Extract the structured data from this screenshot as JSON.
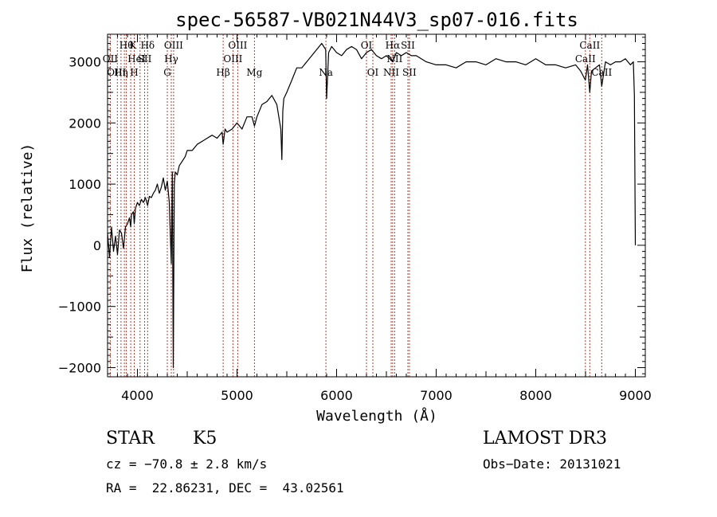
{
  "chart_data": {
    "type": "line",
    "title": "spec-56587-VB021N44V3_sp07-016.fits",
    "xlabel": "Wavelength (Å)",
    "ylabel": "Flux (relative)",
    "xlim": [
      3700,
      9100
    ],
    "ylim": [
      -2150,
      3450
    ],
    "xticks": [
      {
        "value": 4000,
        "label": "4000"
      },
      {
        "value": 5000,
        "label": "5000"
      },
      {
        "value": 6000,
        "label": "6000"
      },
      {
        "value": 7000,
        "label": "7000"
      },
      {
        "value": 8000,
        "label": "8000"
      },
      {
        "value": 9000,
        "label": "9000"
      }
    ],
    "yticks": [
      {
        "value": -2000,
        "label": "−2000"
      },
      {
        "value": -1000,
        "label": "−1000"
      },
      {
        "value": 0,
        "label": "0"
      },
      {
        "value": 1000,
        "label": "1000"
      },
      {
        "value": 2000,
        "label": "2000"
      },
      {
        "value": 3000,
        "label": "3000"
      }
    ],
    "grid": false,
    "series": [
      {
        "x": [
          3700,
          3720,
          3740,
          3760,
          3780,
          3800,
          3820,
          3840,
          3860,
          3880,
          3900,
          3920,
          3933,
          3940,
          3960,
          3968,
          3980,
          4000,
          4020,
          4040,
          4060,
          4080,
          4102,
          4120,
          4140,
          4160,
          4180,
          4200,
          4220,
          4240,
          4260,
          4280,
          4300,
          4320,
          4340,
          4350,
          4360,
          4370,
          4380,
          4400,
          4420,
          4440,
          4460,
          4480,
          4500,
          4550,
          4600,
          4650,
          4700,
          4750,
          4800,
          4850,
          4861,
          4880,
          4900,
          4950,
          5000,
          5050,
          5100,
          5150,
          5175,
          5200,
          5250,
          5300,
          5350,
          5400,
          5440,
          5450,
          5460,
          5470,
          5500,
          5550,
          5600,
          5650,
          5700,
          5750,
          5800,
          5850,
          5890,
          5900,
          5920,
          5950,
          6000,
          6050,
          6100,
          6150,
          6200,
          6250,
          6300,
          6350,
          6400,
          6450,
          6500,
          6563,
          6600,
          6650,
          6700,
          6750,
          6800,
          6900,
          7000,
          7100,
          7200,
          7300,
          7400,
          7500,
          7600,
          7700,
          7800,
          7900,
          8000,
          8100,
          8200,
          8300,
          8400,
          8450,
          8498,
          8520,
          8542,
          8560,
          8600,
          8640,
          8662,
          8700,
          8750,
          8800,
          8850,
          8900,
          8950,
          8980,
          8990,
          9000
        ],
        "y": [
          200,
          -200,
          300,
          -100,
          150,
          -150,
          250,
          200,
          -50,
          300,
          350,
          450,
          300,
          500,
          550,
          350,
          600,
          700,
          650,
          750,
          700,
          780,
          650,
          800,
          780,
          850,
          900,
          1000,
          850,
          950,
          1100,
          900,
          1050,
          700,
          -300,
          1200,
          -2000,
          1000,
          1200,
          1150,
          1300,
          1350,
          1400,
          1450,
          1550,
          1550,
          1650,
          1700,
          1750,
          1800,
          1750,
          1850,
          1650,
          1900,
          1850,
          1900,
          2000,
          1900,
          2100,
          2100,
          1950,
          2100,
          2300,
          2350,
          2450,
          2300,
          1900,
          1400,
          2200,
          2400,
          2500,
          2700,
          2900,
          2900,
          3000,
          3100,
          3200,
          3300,
          3200,
          2400,
          3150,
          3250,
          3150,
          3100,
          3200,
          3250,
          3200,
          3050,
          3150,
          3200,
          3100,
          3050,
          3100,
          3000,
          3150,
          3100,
          3150,
          3100,
          3100,
          3000,
          2950,
          2950,
          2900,
          3000,
          3000,
          2950,
          3050,
          3000,
          3000,
          2950,
          3050,
          2950,
          2950,
          2900,
          2950,
          2850,
          2700,
          2950,
          2500,
          2850,
          2900,
          2950,
          2600,
          3000,
          2950,
          3000,
          3000,
          3050,
          2950,
          3000,
          2450,
          0
        ]
      }
    ],
    "lines": [
      {
        "x": 3727,
        "top": "OII"
      },
      {
        "x": 3798,
        "top": ""
      },
      {
        "x": 3835,
        "top": "Hη"
      },
      {
        "x": 3869,
        "top": "OIII"
      },
      {
        "x": 3889,
        "top": "Hθ"
      },
      {
        "x": 3933,
        "top": "K"
      },
      {
        "x": 3968,
        "top": "H"
      },
      {
        "x": 4026,
        "top": "HeI"
      },
      {
        "x": 4072,
        "top": "SII"
      },
      {
        "x": 4102,
        "top": "Hδ"
      },
      {
        "x": 4300,
        "top": "G"
      },
      {
        "x": 4340,
        "top": "Hγ"
      },
      {
        "x": 4363,
        "top": "OIII"
      },
      {
        "x": 4861,
        "top": "Hβ"
      },
      {
        "x": 4959,
        "top": "OIII"
      },
      {
        "x": 5007,
        "top": "OIII"
      },
      {
        "x": 5175,
        "top": "Mg"
      },
      {
        "x": 5893,
        "top": "Na"
      },
      {
        "x": 6300,
        "top": "OI"
      },
      {
        "x": 6364,
        "top": "OI"
      },
      {
        "x": 6548,
        "top": "NII"
      },
      {
        "x": 6563,
        "top": "Hα"
      },
      {
        "x": 6583,
        "top": "NII"
      },
      {
        "x": 6716,
        "top": "SII"
      },
      {
        "x": 6731,
        "top": "SII"
      },
      {
        "x": 8498,
        "top": "CaII"
      },
      {
        "x": 8542,
        "top": "CaII"
      },
      {
        "x": 8662,
        "top": "CaII"
      }
    ],
    "line_labels": [
      {
        "text": "Hθ",
        "x": 3889,
        "row": 0
      },
      {
        "text": "K",
        "x": 3955,
        "row": 0
      },
      {
        "text": "Hδ",
        "x": 4102,
        "row": 0
      },
      {
        "text": "OIII",
        "x": 4363,
        "row": 0
      },
      {
        "text": "OIII",
        "x": 5007,
        "row": 0
      },
      {
        "text": "OI",
        "x": 6300,
        "row": 0
      },
      {
        "text": "Hα",
        "x": 6563,
        "row": 0
      },
      {
        "text": "SII",
        "x": 6716,
        "row": 0
      },
      {
        "text": "CaII",
        "x": 8542,
        "row": 0
      },
      {
        "text": "OII",
        "x": 3727,
        "row": 1
      },
      {
        "text": "HeI",
        "x": 3990,
        "row": 1
      },
      {
        "text": "SII",
        "x": 4072,
        "row": 1
      },
      {
        "text": "Hγ",
        "x": 4340,
        "row": 1
      },
      {
        "text": "OIII",
        "x": 4959,
        "row": 1
      },
      {
        "text": "NII",
        "x": 6583,
        "row": 1
      },
      {
        "text": "CaII",
        "x": 8498,
        "row": 1
      },
      {
        "text": "OIII",
        "x": 3790,
        "row": 2
      },
      {
        "text": "Hη",
        "x": 3835,
        "row": 2
      },
      {
        "text": "H",
        "x": 3968,
        "row": 2
      },
      {
        "text": "G",
        "x": 4300,
        "row": 2
      },
      {
        "text": "Hβ",
        "x": 4861,
        "row": 2
      },
      {
        "text": "Mg",
        "x": 5175,
        "row": 2
      },
      {
        "text": "Na",
        "x": 5893,
        "row": 2
      },
      {
        "text": "OI",
        "x": 6364,
        "row": 2
      },
      {
        "text": "NII",
        "x": 6548,
        "row": 2
      },
      {
        "text": "SII",
        "x": 6731,
        "row": 2
      },
      {
        "text": "CaII",
        "x": 8662,
        "row": 2
      }
    ]
  },
  "footer": {
    "object_class": "STAR",
    "subclass": "K5",
    "survey": "LAMOST DR3",
    "cz": "cz = −70.8 ± 2.8 km/s",
    "obs_date": "Obs−Date: 20131021",
    "coords": "RA =  22.86231, DEC =  43.02561"
  }
}
